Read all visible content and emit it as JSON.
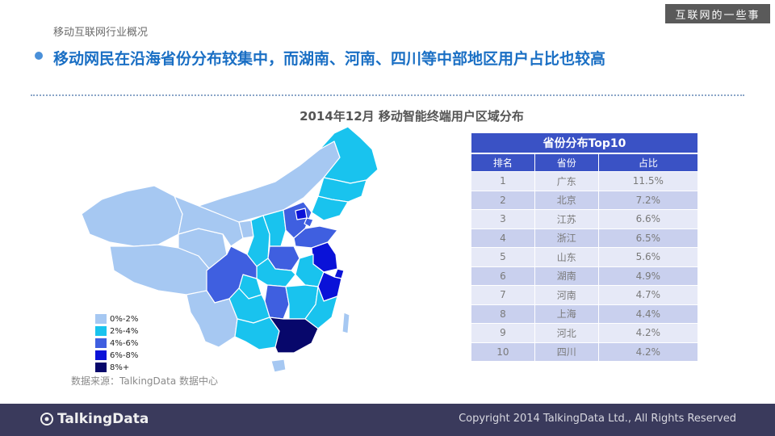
{
  "header": {
    "section_label": "移动互联网行业概况",
    "brand_tag": "互联网的一些事",
    "headline": "移动网民在沿海省份分布较集中，而湖南、河南、四川等中部地区用户占比也较高"
  },
  "map": {
    "title": "2014年12月 移动智能终端用户区域分布",
    "legend": [
      {
        "label": "0%-2%",
        "color": "#a6c8f2"
      },
      {
        "label": "2%-4%",
        "color": "#19c3ee"
      },
      {
        "label": "4%-6%",
        "color": "#3f5fe0"
      },
      {
        "label": "6%-8%",
        "color": "#0a12d8"
      },
      {
        "label": "8%+",
        "color": "#07076b"
      }
    ],
    "source": "数据来源：TalkingData 数据中心"
  },
  "table": {
    "title": "省份分布Top10",
    "headers": [
      "排名",
      "省份",
      "占比"
    ],
    "rows": [
      [
        "1",
        "广东",
        "11.5%"
      ],
      [
        "2",
        "北京",
        "7.2%"
      ],
      [
        "3",
        "江苏",
        "6.6%"
      ],
      [
        "4",
        "浙江",
        "6.5%"
      ],
      [
        "5",
        "山东",
        "5.6%"
      ],
      [
        "6",
        "湖南",
        "4.9%"
      ],
      [
        "7",
        "河南",
        "4.7%"
      ],
      [
        "8",
        "上海",
        "4.4%"
      ],
      [
        "9",
        "河北",
        "4.2%"
      ],
      [
        "10",
        "四川",
        "4.2%"
      ]
    ]
  },
  "footer": {
    "logo_text": "TalkingData",
    "copyright": "Copyright 2014 TalkingData Ltd., All Rights Reserved"
  }
}
